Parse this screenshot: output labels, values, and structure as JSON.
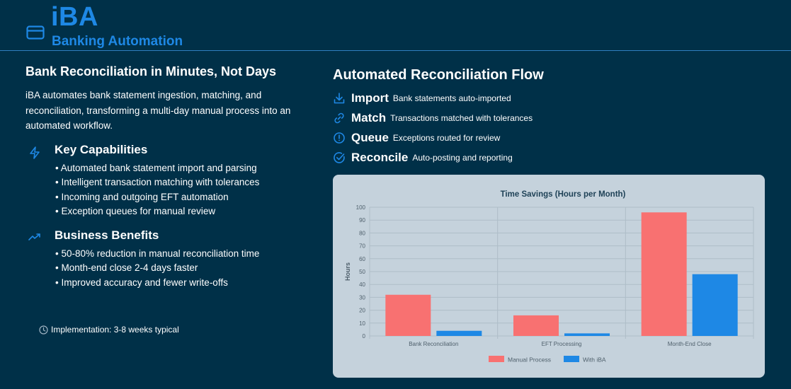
{
  "header": {
    "logo_text": "iBA",
    "logo_sub": "Banking Automation",
    "logo_icon": "credit-card-icon"
  },
  "left": {
    "title": "Bank Reconciliation in Minutes, Not Days",
    "description": "iBA automates bank statement ingestion, matching, and reconciliation, transforming a multi-day manual process into an automated workflow.",
    "capabilities": {
      "icon": "lightning-icon",
      "title": "Key Capabilities",
      "items": [
        "• Automated bank statement import and parsing",
        "• Intelligent transaction matching with tolerances",
        "• Incoming and outgoing EFT automation",
        "• Exception queues for manual review"
      ]
    },
    "benefits": {
      "icon": "trending-up-icon",
      "title": "Business Benefits",
      "items": [
        "• 50-80% reduction in manual reconciliation time",
        "• Month-end close 2-4 days faster",
        "• Improved accuracy and fewer write-offs"
      ]
    },
    "implementation": "Implementation: 3-8 weeks typical"
  },
  "right": {
    "title": "Automated Reconciliation Flow",
    "flow": [
      {
        "icon": "download-icon",
        "name": "Import",
        "desc": "Bank statements auto-imported"
      },
      {
        "icon": "link-icon",
        "name": "Match",
        "desc": "Transactions matched with tolerances"
      },
      {
        "icon": "alert-circle-icon",
        "name": "Queue",
        "desc": "Exceptions routed for review"
      },
      {
        "icon": "check-circle-icon",
        "name": "Reconcile",
        "desc": "Auto-posting and reporting"
      }
    ]
  },
  "colors": {
    "background": "#003048",
    "accent": "#1e88e5",
    "manual": "#f87171",
    "iba": "#1e88e5",
    "card": "#c5d2dc"
  },
  "chart_data": {
    "type": "bar",
    "title": "Time Savings (Hours per Month)",
    "xlabel": "",
    "ylabel": "Hours",
    "ylim": [
      0,
      100
    ],
    "yticks": [
      0,
      10,
      20,
      30,
      40,
      50,
      60,
      70,
      80,
      90,
      100
    ],
    "categories": [
      "Bank Reconciliation",
      "EFT Processing",
      "Month-End Close"
    ],
    "series": [
      {
        "name": "Manual Process",
        "values": [
          32,
          16,
          96
        ],
        "color": "#f87171"
      },
      {
        "name": "With iBA",
        "values": [
          4,
          2,
          48
        ],
        "color": "#1e88e5"
      }
    ],
    "grid": true,
    "legend": "bottom"
  }
}
